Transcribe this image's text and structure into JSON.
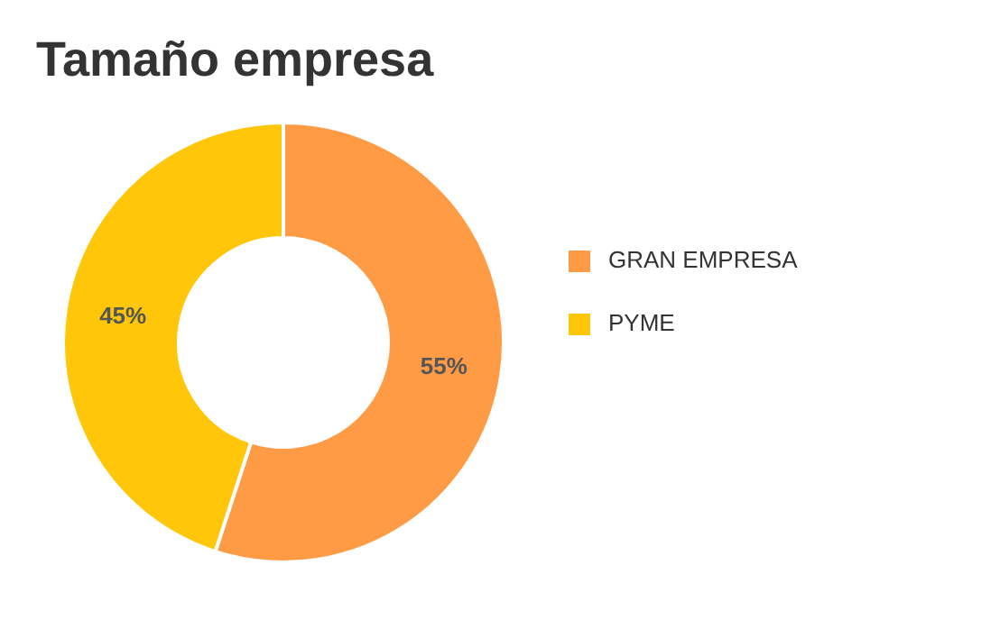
{
  "chart_data": {
    "type": "donut",
    "title": "Tamaño empresa",
    "categories": [
      "GRAN EMPRESA",
      "PYME"
    ],
    "values": [
      55,
      45
    ],
    "colors": [
      "#ff9a45",
      "#ffc60a"
    ],
    "value_labels": [
      "55%",
      "45%"
    ],
    "legend": "right"
  }
}
